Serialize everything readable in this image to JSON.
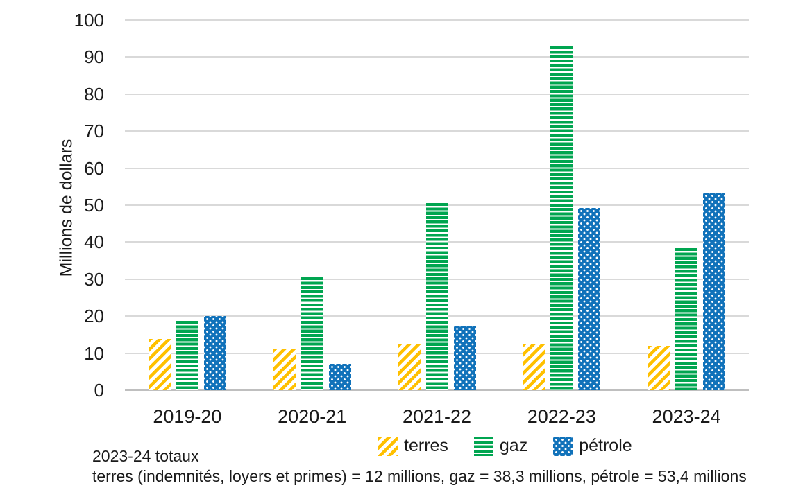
{
  "chart_data": {
    "type": "bar",
    "categories": [
      "2019-20",
      "2020-21",
      "2021-22",
      "2022-23",
      "2023-24"
    ],
    "series": [
      {
        "name": "terres",
        "color": "#FFC000",
        "pattern": "diagonal-stripes",
        "values": [
          13.8,
          11.3,
          12.5,
          12.6,
          12.0
        ]
      },
      {
        "name": "gaz",
        "color": "#00A550",
        "pattern": "horizontal-stripes",
        "values": [
          18.7,
          30.5,
          50.5,
          92.9,
          38.3
        ]
      },
      {
        "name": "pétrole",
        "color": "#1172BA",
        "pattern": "dots",
        "values": [
          20.0,
          7.1,
          17.5,
          49.3,
          53.4
        ]
      }
    ],
    "title": "",
    "xlabel": "",
    "ylabel": "Millions de dollars",
    "ylim": [
      0,
      100
    ],
    "yticks": [
      0,
      10,
      20,
      30,
      40,
      50,
      60,
      70,
      80,
      90,
      100
    ],
    "grid": true,
    "gridline_color": "#d9d9d9",
    "axis_line_color": "#bfbfbf",
    "legend_position": "bottom"
  },
  "notes": {
    "line1": "2023-24 totaux",
    "line2": "terres (indemnités, loyers et primes) = 12 millions, gaz = 38,3 millions, pétrole = 53,4 millions"
  }
}
